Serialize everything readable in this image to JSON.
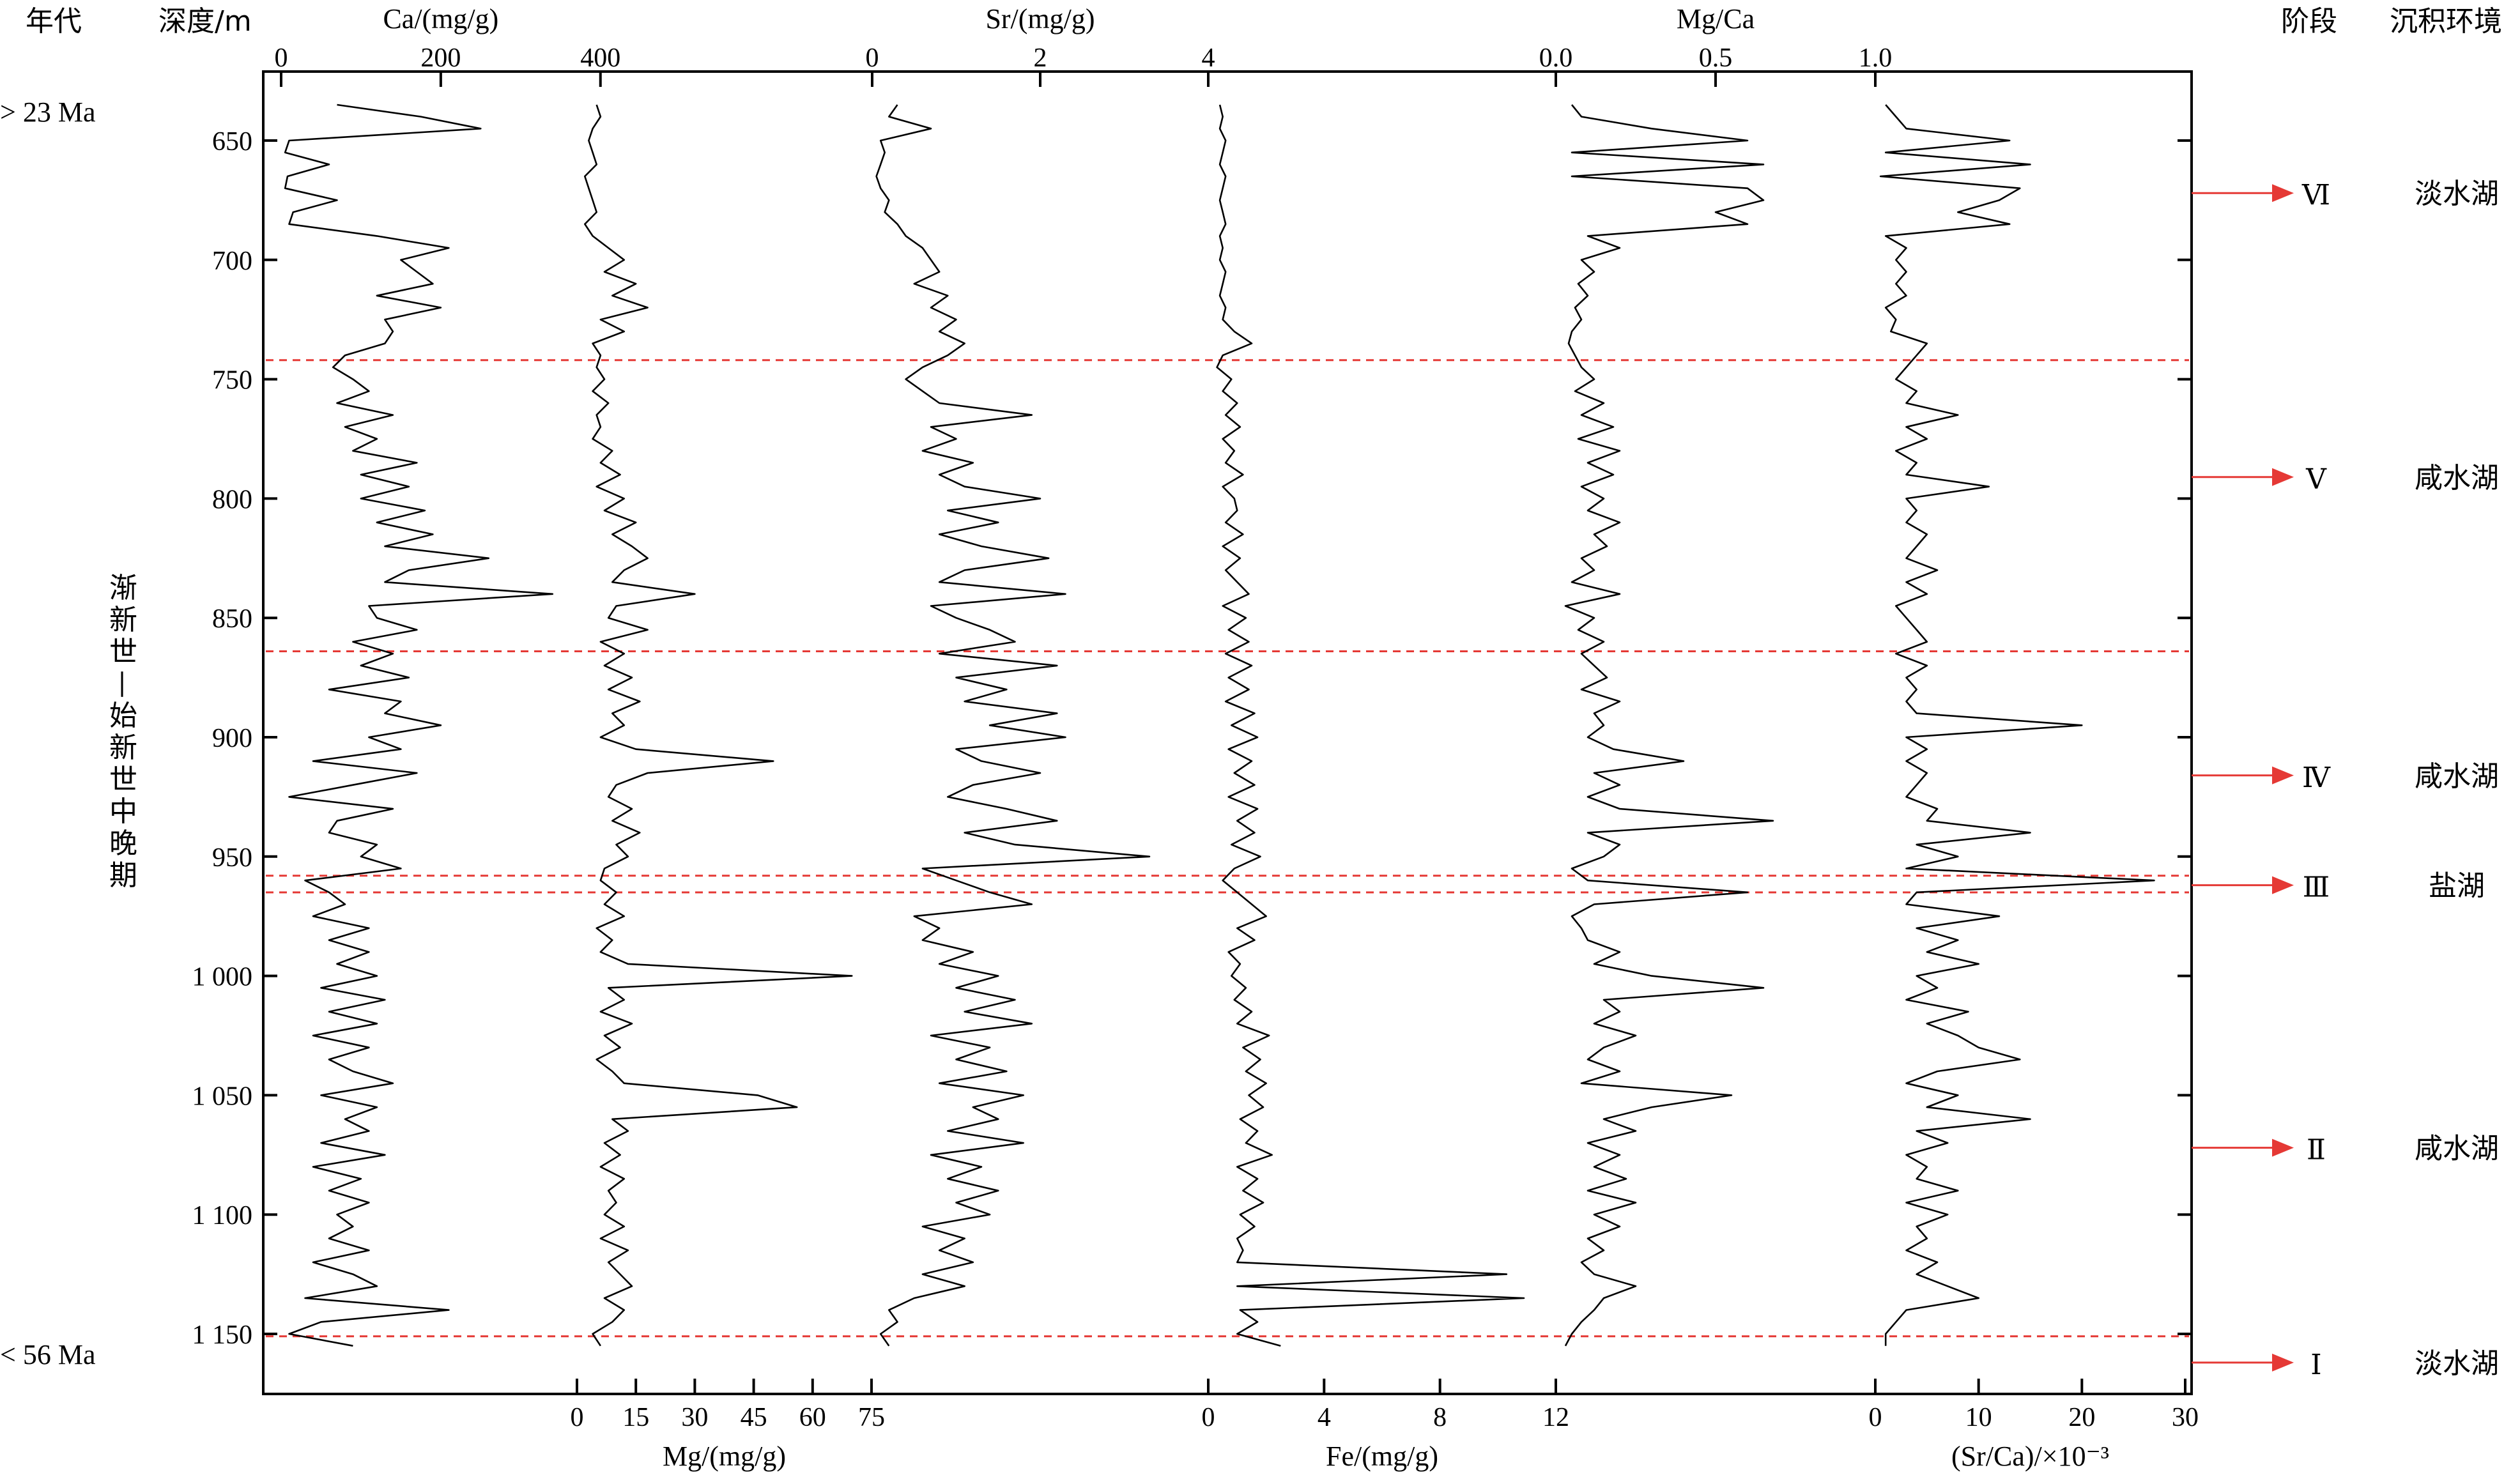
{
  "figure": {
    "header_left": {
      "era": "年代",
      "depth": "深度/m"
    },
    "header_right": {
      "stage": "阶段",
      "environment": "沉积环境"
    },
    "age_top": "> 23 Ma",
    "age_bottom": "< 56 Ma",
    "epoch_label": "渐新世—始新世中晚期",
    "colors": {
      "trace": "#000000",
      "boundary": "#e53935",
      "arrow": "#e53935"
    }
  },
  "chart_data": {
    "type": "line",
    "orientation": "vertical-depth-log",
    "depth_axis": {
      "label": "深度/m",
      "range": [
        627,
        1162
      ],
      "ticks": [
        650,
        700,
        750,
        800,
        850,
        900,
        950,
        1000,
        1050,
        1100,
        1150
      ],
      "tick_labels": [
        "650",
        "700",
        "750",
        "800",
        "850",
        "900",
        "950",
        "1 000",
        "1 050",
        "1 100",
        "1 150"
      ]
    },
    "depths": [
      635,
      640,
      645,
      650,
      655,
      660,
      665,
      670,
      675,
      680,
      685,
      690,
      695,
      700,
      705,
      710,
      715,
      720,
      725,
      730,
      735,
      740,
      745,
      750,
      755,
      760,
      765,
      770,
      775,
      780,
      785,
      790,
      795,
      800,
      805,
      810,
      815,
      820,
      825,
      830,
      835,
      840,
      845,
      850,
      855,
      860,
      865,
      870,
      875,
      880,
      885,
      890,
      895,
      900,
      905,
      910,
      915,
      920,
      925,
      930,
      935,
      940,
      945,
      950,
      955,
      960,
      965,
      970,
      975,
      980,
      985,
      990,
      995,
      1000,
      1005,
      1010,
      1015,
      1020,
      1025,
      1030,
      1035,
      1040,
      1045,
      1050,
      1055,
      1060,
      1065,
      1070,
      1075,
      1080,
      1085,
      1090,
      1095,
      1100,
      1105,
      1110,
      1115,
      1120,
      1125,
      1130,
      1135,
      1140,
      1145,
      1150,
      1155
    ],
    "series": [
      {
        "name": "Ca",
        "axis_label": "Ca/(mg/g)",
        "axis_position": "top",
        "ticks": [
          0,
          200,
          400
        ],
        "range": [
          0,
          405
        ],
        "values": [
          70,
          175,
          250,
          10,
          5,
          60,
          8,
          5,
          70,
          15,
          10,
          120,
          210,
          150,
          170,
          190,
          120,
          200,
          130,
          140,
          130,
          80,
          65,
          90,
          110,
          70,
          140,
          80,
          120,
          90,
          170,
          100,
          160,
          100,
          180,
          120,
          190,
          130,
          260,
          160,
          130,
          340,
          110,
          120,
          170,
          90,
          140,
          100,
          160,
          60,
          150,
          130,
          200,
          110,
          150,
          40,
          170,
          90,
          10,
          140,
          70,
          60,
          120,
          100,
          150,
          30,
          60,
          80,
          40,
          110,
          60,
          110,
          70,
          120,
          50,
          130,
          60,
          120,
          40,
          110,
          60,
          90,
          140,
          50,
          120,
          80,
          110,
          50,
          130,
          40,
          100,
          60,
          110,
          70,
          90,
          60,
          110,
          40,
          90,
          120,
          30,
          210,
          50,
          10,
          90
        ]
      },
      {
        "name": "Mg",
        "axis_label": "Mg/(mg/g)",
        "axis_position": "bottom",
        "ticks": [
          0,
          15,
          30,
          45,
          60,
          75
        ],
        "range": [
          -1.3,
          75
        ],
        "values": [
          5,
          6,
          4,
          3,
          4,
          5,
          2,
          3,
          4,
          5,
          2,
          4,
          8,
          12,
          7,
          15,
          9,
          18,
          6,
          12,
          4,
          6,
          5,
          7,
          4,
          8,
          5,
          6,
          4,
          9,
          6,
          11,
          5,
          12,
          7,
          15,
          9,
          14,
          18,
          12,
          9,
          30,
          10,
          8,
          18,
          6,
          12,
          7,
          14,
          8,
          16,
          9,
          12,
          6,
          15,
          50,
          18,
          10,
          8,
          14,
          9,
          16,
          10,
          13,
          7,
          6,
          10,
          7,
          12,
          5,
          9,
          6,
          13,
          70,
          8,
          12,
          6,
          14,
          7,
          11,
          5,
          9,
          12,
          46,
          56,
          9,
          13,
          7,
          11,
          6,
          12,
          8,
          10,
          7,
          12,
          6,
          13,
          8,
          11,
          14,
          7,
          12,
          9,
          4,
          6
        ]
      },
      {
        "name": "Sr",
        "axis_label": "Sr/(mg/g)",
        "axis_position": "top",
        "ticks": [
          0,
          2,
          4
        ],
        "range": [
          0,
          4
        ],
        "values": [
          0.3,
          0.2,
          0.7,
          0.1,
          0.15,
          0.1,
          0.05,
          0.1,
          0.2,
          0.15,
          0.3,
          0.4,
          0.6,
          0.7,
          0.8,
          0.5,
          0.9,
          0.7,
          1.0,
          0.8,
          1.1,
          0.9,
          0.6,
          0.4,
          0.6,
          0.8,
          1.9,
          0.7,
          1.0,
          0.6,
          1.2,
          0.8,
          1.1,
          2.0,
          0.9,
          1.5,
          0.8,
          1.3,
          2.1,
          1.1,
          0.8,
          2.3,
          0.7,
          1.0,
          1.4,
          1.7,
          0.8,
          2.2,
          1.0,
          1.6,
          1.1,
          2.2,
          1.4,
          2.3,
          1.0,
          1.3,
          2.0,
          1.2,
          0.9,
          1.6,
          2.2,
          1.1,
          1.7,
          3.3,
          0.6,
          1.0,
          1.4,
          1.9,
          0.5,
          0.8,
          0.6,
          1.2,
          0.8,
          1.5,
          1.0,
          1.7,
          1.1,
          1.9,
          0.7,
          1.4,
          1.0,
          1.6,
          0.8,
          1.8,
          1.2,
          1.5,
          0.9,
          1.8,
          0.7,
          1.3,
          0.9,
          1.5,
          1.0,
          1.4,
          0.6,
          1.1,
          0.8,
          1.2,
          0.6,
          1.1,
          0.5,
          0.2,
          0.3,
          0.1,
          0.2
        ]
      },
      {
        "name": "Fe",
        "axis_label": "Fe/(mg/g)",
        "axis_position": "bottom",
        "ticks": [
          0,
          4,
          8,
          12
        ],
        "range": [
          0,
          12
        ],
        "values": [
          0.4,
          0.5,
          0.4,
          0.6,
          0.5,
          0.4,
          0.6,
          0.5,
          0.4,
          0.5,
          0.6,
          0.4,
          0.5,
          0.4,
          0.6,
          0.5,
          0.4,
          0.6,
          0.5,
          0.9,
          1.5,
          0.5,
          0.3,
          0.8,
          0.5,
          1.0,
          0.6,
          1.1,
          0.5,
          0.9,
          0.6,
          1.2,
          0.5,
          0.9,
          1.0,
          0.6,
          1.2,
          0.5,
          1.1,
          0.6,
          1.0,
          1.4,
          0.5,
          1.3,
          0.7,
          1.4,
          0.6,
          1.5,
          0.7,
          1.4,
          0.6,
          1.6,
          0.8,
          1.7,
          0.7,
          1.5,
          0.9,
          1.6,
          0.7,
          1.7,
          1.0,
          1.6,
          0.8,
          1.8,
          0.9,
          0.5,
          1.0,
          1.5,
          2.0,
          1.0,
          1.6,
          0.7,
          1.1,
          0.8,
          1.3,
          0.9,
          1.5,
          1.0,
          2.1,
          1.2,
          1.8,
          1.3,
          2.0,
          1.4,
          1.9,
          1.1,
          1.7,
          1.3,
          2.2,
          1.0,
          1.7,
          1.2,
          1.9,
          1.1,
          1.6,
          1.0,
          1.2,
          1.0,
          10.3,
          1.0,
          10.9,
          1.1,
          1.7,
          1.0,
          2.5
        ]
      },
      {
        "name": "Mg/Ca",
        "axis_label": "Mg/Ca",
        "axis_position": "top",
        "ticks": [
          0.0,
          0.5,
          1.0
        ],
        "range": [
          0,
          1.0
        ],
        "values": [
          0.05,
          0.08,
          0.3,
          0.6,
          0.05,
          0.65,
          0.05,
          0.6,
          0.65,
          0.5,
          0.6,
          0.1,
          0.2,
          0.08,
          0.12,
          0.07,
          0.1,
          0.06,
          0.08,
          0.05,
          0.04,
          0.06,
          0.08,
          0.12,
          0.06,
          0.15,
          0.08,
          0.18,
          0.07,
          0.2,
          0.1,
          0.18,
          0.08,
          0.15,
          0.1,
          0.2,
          0.12,
          0.16,
          0.08,
          0.12,
          0.05,
          0.2,
          0.03,
          0.12,
          0.07,
          0.15,
          0.08,
          0.12,
          0.16,
          0.08,
          0.2,
          0.12,
          0.15,
          0.1,
          0.18,
          0.4,
          0.12,
          0.2,
          0.1,
          0.2,
          0.68,
          0.1,
          0.2,
          0.15,
          0.05,
          0.1,
          0.6,
          0.12,
          0.05,
          0.08,
          0.1,
          0.2,
          0.12,
          0.3,
          0.65,
          0.15,
          0.2,
          0.12,
          0.25,
          0.15,
          0.1,
          0.2,
          0.08,
          0.55,
          0.3,
          0.15,
          0.25,
          0.1,
          0.2,
          0.12,
          0.22,
          0.1,
          0.25,
          0.12,
          0.2,
          0.1,
          0.15,
          0.08,
          0.12,
          0.25,
          0.15,
          0.12,
          0.08,
          0.05,
          0.03
        ]
      },
      {
        "name": "Sr/Ca",
        "axis_label": "(Sr/Ca)/×10⁻³",
        "axis_position": "bottom",
        "ticks": [
          0,
          10,
          20,
          30
        ],
        "range": [
          0,
          30
        ],
        "values": [
          1,
          2,
          3,
          13,
          1,
          15,
          0.5,
          14,
          12,
          8,
          13,
          1,
          3,
          2,
          3,
          2,
          3,
          1,
          2,
          1.5,
          5,
          4,
          3,
          2,
          4,
          3,
          8,
          3,
          5,
          2,
          4,
          3,
          11,
          3,
          4,
          3,
          5,
          4,
          3,
          6,
          3,
          5,
          2,
          3,
          4,
          5,
          2,
          5,
          3,
          4,
          3,
          4,
          20,
          3,
          5,
          3,
          5,
          4,
          3,
          6,
          5,
          15,
          4,
          8,
          3,
          27,
          4,
          3,
          12,
          4,
          8,
          5,
          10,
          4,
          6,
          3,
          9,
          5,
          8,
          10,
          14,
          6,
          3,
          8,
          5,
          15,
          4,
          7,
          3,
          5,
          4,
          8,
          3,
          7,
          4,
          5,
          3,
          6,
          4,
          7,
          10,
          3,
          2,
          1,
          1
        ]
      }
    ],
    "boundaries": [
      742,
      864,
      958,
      965,
      1151
    ],
    "stages": [
      {
        "stage": "Ⅵ",
        "environment": "淡水湖",
        "depth": 672
      },
      {
        "stage": "Ⅴ",
        "environment": "咸水湖",
        "depth": 791
      },
      {
        "stage": "Ⅳ",
        "environment": "咸水湖",
        "depth": 916
      },
      {
        "stage": "Ⅲ",
        "environment": "盐湖",
        "depth": 962
      },
      {
        "stage": "Ⅱ",
        "environment": "咸水湖",
        "depth": 1072
      },
      {
        "stage": "Ⅰ",
        "environment": "淡水湖",
        "depth": 1162
      }
    ]
  }
}
